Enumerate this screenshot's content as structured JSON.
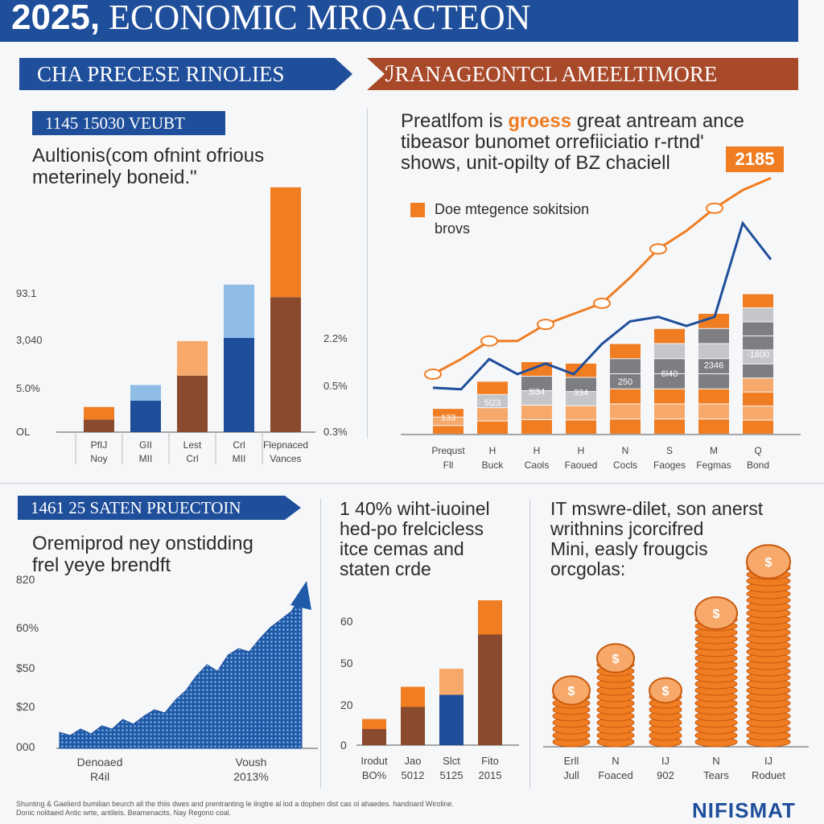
{
  "header": {
    "title_bold": "2025,",
    "title_rest": " ECONOMIC MROACTEON"
  },
  "banners": {
    "left": "CHA PRECESE RINOLIES",
    "right": "ℐRANAGEONTCL AMEELTIMORE"
  },
  "panel1": {
    "tag": "1145 15030 VEUBT",
    "subtitle": "Aultionis(com ofnint ofrious\nmeterinely boneid.\"",
    "left_ticks": [
      "93.1",
      "3,040",
      "5.0%",
      "OL"
    ],
    "right_ticks": [
      "2.2%",
      "0.5%",
      "0.3%"
    ]
  },
  "panel2": {
    "heading_pre": "Preatlfom is ",
    "heading_highlight": "groess",
    "heading_post": " great antream ance\ntibeasor bunomet orrefiiciatio r-rtnd'\nshows, unit-opilty of BZ chaciell",
    "badge": "2185",
    "legend": "Doe mtegence sokitsion\nbrovs"
  },
  "panel3": {
    "tag": "1461 25 SATEN PRUECTOIN",
    "subtitle": "Oremiprod ney onstidding\nfrel yeye brendft",
    "ticks": [
      "820",
      "60%",
      "$50",
      "$20",
      "000"
    ]
  },
  "panel4": {
    "subtitle": "1 40% wiht-iuoinel\nhed-po frelcicless\nitce cemas and\nstaten crde"
  },
  "panel5": {
    "subtitle": "IT mswre-dilet, son anerst\nwrithnins jcorcifred\nMini, easly frougcis\norcgolas:"
  },
  "footer": {
    "text": "Shunting & Gaelierd bumilian beurch all the thiis dwes and prentranting le ilngtre al lod a dopben dist cas ol ahaedes. handoard Wiroline. Donic nolitaeid Antic wrte, antileis. Beamenacits, Nay Regono coal.",
    "brand": "NIFISMAT"
  },
  "colors": {
    "blue": "#1f4e9a",
    "light_blue": "#8fbde6",
    "orange": "#f07d22",
    "light_orange": "#f6a96a",
    "brown": "#8a4a2e",
    "gray": "#7d7e82",
    "light_gray": "#c4c6ca"
  },
  "chart_data": [
    {
      "type": "bar",
      "title": "1145 15030 VEUBT",
      "categories": [
        {
          "line1": "PfIJ",
          "line2": "Noy"
        },
        {
          "line1": "GII",
          "line2": "MII"
        },
        {
          "line1": "Lest",
          "line2": "Crl"
        },
        {
          "line1": "Crl",
          "line2": "MII"
        },
        {
          "line1": "Flepnaced",
          "line2": "Vances"
        }
      ],
      "series": [
        {
          "color": "brown",
          "values": [
            4,
            10,
            18,
            30,
            43
          ]
        },
        {
          "color": "orange",
          "values": [
            4,
            5,
            11,
            17,
            35
          ]
        }
      ],
      "series_colors_alt": [
        [
          "brown",
          "orange"
        ],
        [
          "blue",
          "light_blue"
        ],
        [
          "brown",
          "light_orange"
        ],
        [
          "blue",
          "light_blue"
        ],
        [
          "brown",
          "orange"
        ]
      ],
      "ylim": [
        0,
        80
      ]
    },
    {
      "type": "bar",
      "categories": [
        {
          "line1": "Prequst",
          "line2": "Fll"
        },
        {
          "line1": "H",
          "line2": "Buck"
        },
        {
          "line1": "H",
          "line2": "Caols"
        },
        {
          "line1": "H",
          "line2": "Faoued"
        },
        {
          "line1": "N",
          "line2": "Cocls"
        },
        {
          "line1": "S",
          "line2": "Faoges"
        },
        {
          "line1": "M",
          "line2": "Fegmas"
        },
        {
          "line1": "Q",
          "line2": "Bond"
        }
      ],
      "bar_labels": [
        "133",
        "5l23",
        "3l34",
        "334",
        "250",
        "6l40",
        "2346",
        "-1800"
      ],
      "totals": [
        17,
        35,
        48,
        47,
        60,
        70,
        80,
        93
      ],
      "line_orange": [
        40,
        50,
        62,
        62,
        73,
        80,
        87,
        104,
        123,
        135,
        150,
        162,
        170
      ],
      "line_blue": [
        31,
        30,
        50,
        40,
        47,
        40,
        60,
        75,
        78,
        72,
        78,
        140,
        116
      ],
      "ylim": [
        0,
        160
      ]
    },
    {
      "type": "area",
      "title": "1461 25 SATEN PRUECTOIN",
      "x_labels": [
        {
          "line1": "Denoaed",
          "line2": "R4il"
        },
        {
          "line1": "Voush",
          "line2": "2013%"
        }
      ],
      "values": [
        10,
        8,
        12,
        9,
        14,
        12,
        18,
        15,
        20,
        24,
        22,
        30,
        36,
        45,
        52,
        48,
        58,
        62,
        60,
        68,
        75,
        80,
        85,
        95
      ],
      "ylim": [
        0,
        100
      ]
    },
    {
      "type": "bar",
      "categories": [
        {
          "line1": "Irodut",
          "line2": "BO%"
        },
        {
          "line1": "Jao",
          "line2": "5012"
        },
        {
          "line1": "Slct",
          "line2": "5125"
        },
        {
          "line1": "Fito",
          "line2": "2015"
        }
      ],
      "ticks": [
        "60",
        "50",
        "20",
        "0"
      ],
      "series": [
        {
          "color": "brown",
          "values": [
            8,
            19,
            25,
            55
          ]
        },
        {
          "color": "orange",
          "values": [
            5,
            10,
            13,
            17
          ]
        }
      ],
      "ylim": [
        0,
        80
      ]
    },
    {
      "type": "bar",
      "categories": [
        {
          "line1": "Erll",
          "line2": "Jull"
        },
        {
          "line1": "N",
          "line2": "Foaced"
        },
        {
          "line1": "IJ",
          "line2": "902"
        },
        {
          "line1": "N",
          "line2": "Tears"
        },
        {
          "line1": "IJ",
          "line2": "Roduet"
        }
      ],
      "values": [
        9,
        14,
        8,
        21,
        30
      ],
      "ylim": [
        0,
        32
      ]
    }
  ]
}
